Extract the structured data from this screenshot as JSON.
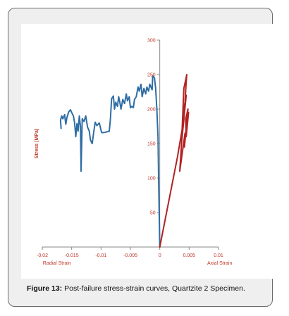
{
  "caption": {
    "label": "Figure 13:",
    "text": "Post-failure stress-strain curves, Quartzite 2 Specimen."
  },
  "chart_data": {
    "type": "line",
    "ylabel": "Stress (MPa)",
    "xlabel_left": "Radial Strain",
    "xlabel_right": "Axial Strain",
    "xlim": [
      -0.02,
      0.01
    ],
    "ylim": [
      0,
      300
    ],
    "x_ticks": [
      "-0.02",
      "-0.015",
      "-0.01",
      "-0.005",
      "0",
      "0.005",
      "0.01"
    ],
    "y_ticks": [
      "50",
      "100",
      "150",
      "200",
      "250",
      "300"
    ],
    "grid": false,
    "colors": {
      "axis_text": "#c0392b",
      "radial": "#2e6da4",
      "axial": "#b22222"
    },
    "series": [
      {
        "key": "radial",
        "color": "#2e6da4",
        "points": [
          [
            0,
            0
          ],
          [
            -0.0002,
            100
          ],
          [
            -0.0003,
            160
          ],
          [
            -0.0005,
            200
          ],
          [
            -0.0007,
            230
          ],
          [
            -0.0009,
            245
          ],
          [
            -0.0012,
            248
          ],
          [
            -0.0013,
            228
          ],
          [
            -0.0017,
            236
          ],
          [
            -0.0019,
            226
          ],
          [
            -0.0022,
            232
          ],
          [
            -0.0024,
            222
          ],
          [
            -0.0027,
            230
          ],
          [
            -0.003,
            218
          ],
          [
            -0.0032,
            236
          ],
          [
            -0.0035,
            226
          ],
          [
            -0.0037,
            232
          ],
          [
            -0.004,
            218
          ],
          [
            -0.0043,
            214
          ],
          [
            -0.0045,
            202
          ],
          [
            -0.0048,
            204
          ],
          [
            -0.005,
            202
          ],
          [
            -0.0052,
            218
          ],
          [
            -0.0055,
            212
          ],
          [
            -0.0057,
            222
          ],
          [
            -0.006,
            208
          ],
          [
            -0.0063,
            214
          ],
          [
            -0.0066,
            200
          ],
          [
            -0.0068,
            210
          ],
          [
            -0.007,
            218
          ],
          [
            -0.0072,
            204
          ],
          [
            -0.0075,
            210
          ],
          [
            -0.0077,
            200
          ],
          [
            -0.0079,
            219
          ],
          [
            -0.0082,
            215
          ],
          [
            -0.0084,
            186
          ],
          [
            -0.0086,
            168
          ],
          [
            -0.009,
            167
          ],
          [
            -0.0095,
            166
          ],
          [
            -0.0099,
            166
          ],
          [
            -0.0103,
            180
          ],
          [
            -0.0107,
            176
          ],
          [
            -0.011,
            181
          ],
          [
            -0.0113,
            163
          ],
          [
            -0.0115,
            150
          ],
          [
            -0.0118,
            155
          ],
          [
            -0.012,
            168
          ],
          [
            -0.0123,
            174
          ],
          [
            -0.0126,
            190
          ],
          [
            -0.0129,
            182
          ],
          [
            -0.0132,
            186
          ],
          [
            -0.0134,
            110
          ],
          [
            -0.0135,
            175
          ],
          [
            -0.0137,
            190
          ],
          [
            -0.0139,
            168
          ],
          [
            -0.0141,
            179
          ],
          [
            -0.0143,
            160
          ],
          [
            -0.0145,
            180
          ],
          [
            -0.0147,
            190
          ],
          [
            -0.015,
            195
          ],
          [
            -0.0152,
            199
          ],
          [
            -0.0155,
            196
          ],
          [
            -0.0158,
            188
          ],
          [
            -0.016,
            178
          ],
          [
            -0.0162,
            192
          ],
          [
            -0.0165,
            186
          ],
          [
            -0.0167,
            190
          ],
          [
            -0.0169,
            184
          ],
          [
            -0.0168,
            172
          ]
        ]
      },
      {
        "key": "axial",
        "color": "#b22222",
        "points": [
          [
            0,
            0
          ],
          [
            0.0015,
            65
          ],
          [
            0.003,
            130
          ],
          [
            0.0035,
            155
          ],
          [
            0.004,
            180
          ],
          [
            0.0043,
            210
          ],
          [
            0.0045,
            240
          ],
          [
            0.0046,
            250
          ],
          [
            0.0041,
            230
          ],
          [
            0.0037,
            150
          ],
          [
            0.0045,
            220
          ],
          [
            0.0041,
            200
          ],
          [
            0.0034,
            110
          ],
          [
            0.0043,
            165
          ],
          [
            0.0042,
            145
          ],
          [
            0.0048,
            200
          ],
          [
            0.0044,
            185
          ],
          [
            0.0045,
            160
          ],
          [
            0.0049,
            195
          ],
          [
            0.0047,
            178
          ]
        ]
      }
    ]
  }
}
